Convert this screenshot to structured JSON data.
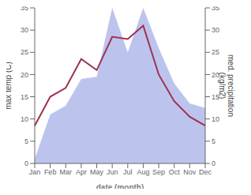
{
  "chart_data": {
    "type": "line",
    "categories": [
      "Jan",
      "Feb",
      "Mar",
      "Apr",
      "May",
      "Jun",
      "Jul",
      "Aug",
      "Sep",
      "Oct",
      "Nov",
      "Dec"
    ],
    "x_label": "date (month)",
    "y_label": "max temp (C)",
    "y2_label": "med. precipitation\n(kg/m2)",
    "series": [
      {
        "type": "area",
        "axis": "y2",
        "color": "#bcc4ee",
        "values": [
          1.0,
          11.0,
          13.0,
          19.0,
          19.5,
          35.0,
          25.0,
          35.0,
          26.0,
          18.0,
          13.5,
          12.5
        ]
      },
      {
        "type": "line",
        "color": "#a03050",
        "values": [
          8.5,
          15.0,
          17.0,
          23.5,
          21.0,
          28.5,
          28.0,
          31.0,
          20.0,
          14.0,
          10.5,
          8.5
        ]
      }
    ],
    "ylim": [
      0,
      35
    ],
    "yticks": [
      0,
      5,
      10,
      15,
      20,
      25,
      30,
      35
    ],
    "y2lim": [
      0,
      35
    ],
    "y2ticks": [
      0,
      5,
      10,
      15,
      20,
      25,
      30,
      35
    ],
    "grid": false
  }
}
